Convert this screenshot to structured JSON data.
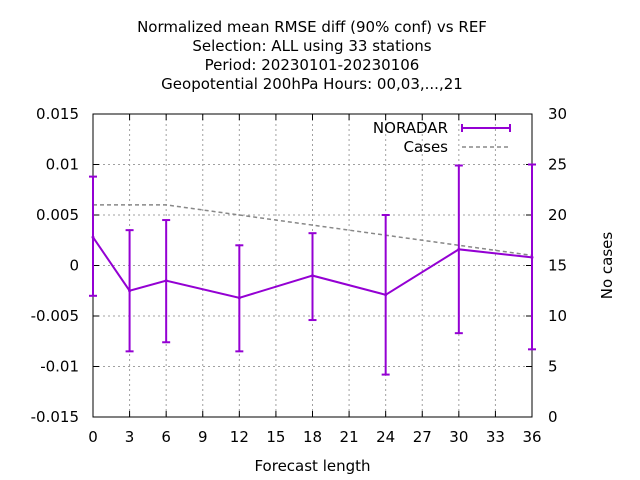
{
  "chart_data": {
    "type": "line",
    "title_lines": [
      "Normalized mean RMSE diff (90% conf) vs REF",
      "Selection: ALL using    33 stations",
      "Period: 20230101-20230106",
      "Geopotential 200hPa   Hours:  00,03,...,21"
    ],
    "xlabel": "Forecast length",
    "ylabel": "",
    "y2label": "No cases",
    "xlim": [
      0,
      36
    ],
    "ylim": [
      -0.015,
      0.015
    ],
    "y2lim": [
      0,
      30
    ],
    "xticks": [
      0,
      3,
      6,
      9,
      12,
      15,
      18,
      21,
      24,
      27,
      30,
      33,
      36
    ],
    "yticks": [
      -0.015,
      -0.01,
      -0.005,
      0,
      0.005,
      0.01,
      0.015
    ],
    "ytick_labels": [
      "-0.015",
      "-0.01",
      "-0.005",
      "0",
      "0.005",
      "0.01",
      "0.015"
    ],
    "y2ticks": [
      0,
      5,
      10,
      15,
      20,
      25,
      30
    ],
    "grid": true,
    "legend_position": "top-right",
    "series": [
      {
        "name": "NORADAR",
        "color": "#9400d3",
        "style": "line-errorbars",
        "x": [
          0,
          3,
          6,
          12,
          18,
          24,
          30,
          36
        ],
        "y": [
          0.0028,
          -0.0025,
          -0.0015,
          -0.0032,
          -0.001,
          -0.0029,
          0.0016,
          0.0008
        ],
        "err_low": [
          -0.003,
          -0.0085,
          -0.0076,
          -0.0085,
          -0.0054,
          -0.0108,
          -0.0067,
          -0.0083
        ],
        "err_high": [
          0.0088,
          0.0035,
          0.0045,
          0.002,
          0.0032,
          0.005,
          0.0099,
          0.01
        ]
      },
      {
        "name": "Cases",
        "color": "#888888",
        "style": "dashed",
        "axis": "y2",
        "x": [
          0,
          3,
          6,
          9,
          12,
          15,
          18,
          21,
          24,
          27,
          30,
          33,
          36
        ],
        "y": [
          21,
          21,
          21,
          20.5,
          20,
          19.5,
          19,
          18.5,
          18,
          17.5,
          17,
          16.5,
          16
        ]
      }
    ]
  }
}
